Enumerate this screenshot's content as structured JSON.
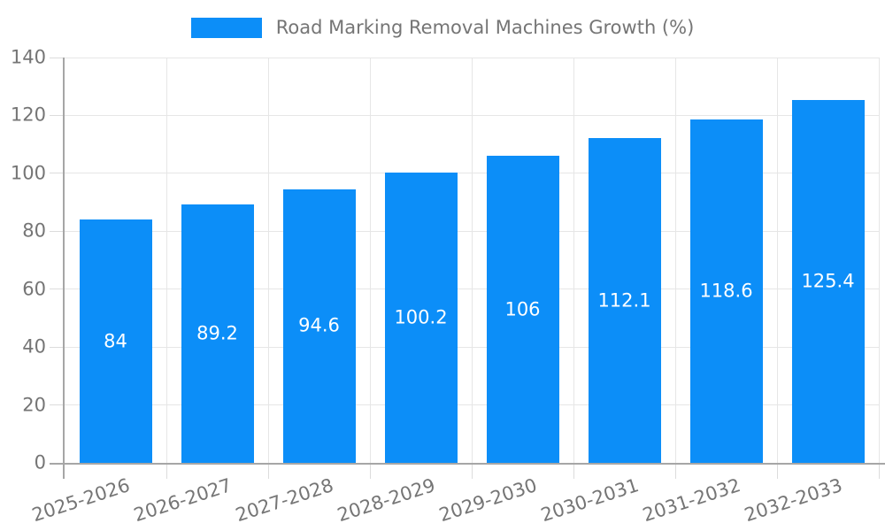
{
  "chart_data": {
    "type": "bar",
    "title": "Road Marking Removal Machines Growth (%)",
    "categories": [
      "2025-2026",
      "2026-2027",
      "2027-2028",
      "2028-2029",
      "2029-2030",
      "2030-2031",
      "2031-2032",
      "2032-2033"
    ],
    "values": [
      84,
      89.2,
      94.6,
      100.2,
      106,
      112.1,
      118.6,
      125.4
    ],
    "xlabel": "",
    "ylabel": "",
    "ylim": [
      0,
      140
    ],
    "ytick_step": 20,
    "yticks": [
      0,
      20,
      40,
      60,
      80,
      100,
      120,
      140
    ],
    "grid": true,
    "legend_position": "top-center",
    "bar_label_position": "inside-center"
  },
  "colors": {
    "bar": "#0c8ef8",
    "axis_line": "#a6a6a6",
    "gridline": "#e6e6e6",
    "tick_mark": "#dcdcdc",
    "tick_label": "#757575",
    "legend_label": "#757575",
    "value_label": "#ffffff",
    "background": "#ffffff"
  }
}
